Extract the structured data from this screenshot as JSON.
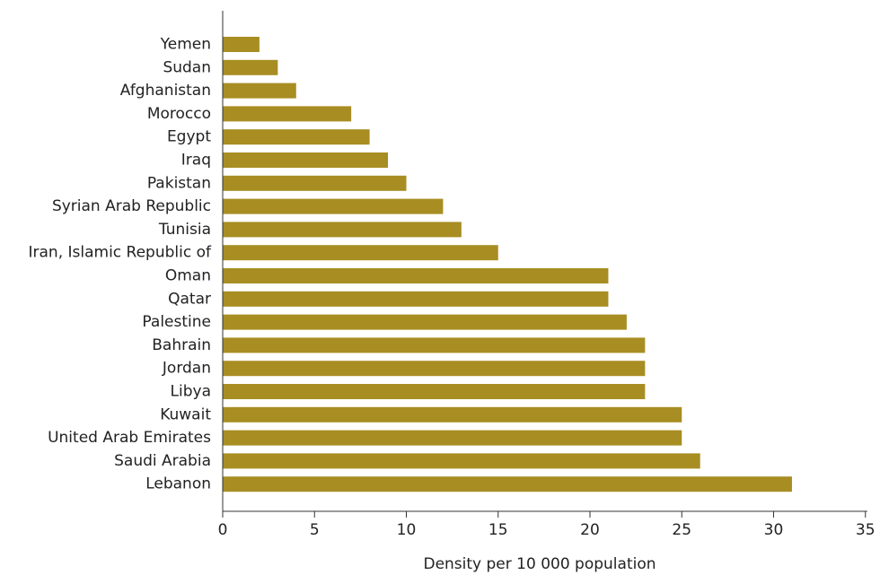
{
  "chart_data": {
    "type": "bar",
    "orientation": "horizontal",
    "categories": [
      "Yemen",
      "Sudan",
      "Afghanistan",
      "Morocco",
      "Egypt",
      "Iraq",
      "Pakistan",
      "Syrian Arab Republic",
      "Tunisia",
      "Iran, Islamic Republic of",
      "Oman",
      "Qatar",
      "Palestine",
      "Bahrain",
      "Jordan",
      "Libya",
      "Kuwait",
      "United Arab Emirates",
      "Saudi Arabia",
      "Lebanon"
    ],
    "values": [
      2,
      3,
      4,
      7,
      8,
      9,
      10,
      12,
      13,
      15,
      21,
      21,
      22,
      23,
      23,
      23,
      25,
      25,
      26,
      31
    ],
    "xlabel": "Density per 10 000 population",
    "ylabel": "",
    "title": "",
    "xlim": [
      0,
      35
    ],
    "xticks": [
      "0",
      "5",
      "10",
      "15",
      "20",
      "25",
      "30",
      "35"
    ],
    "bar_color": "#a88d22",
    "grid": false
  }
}
